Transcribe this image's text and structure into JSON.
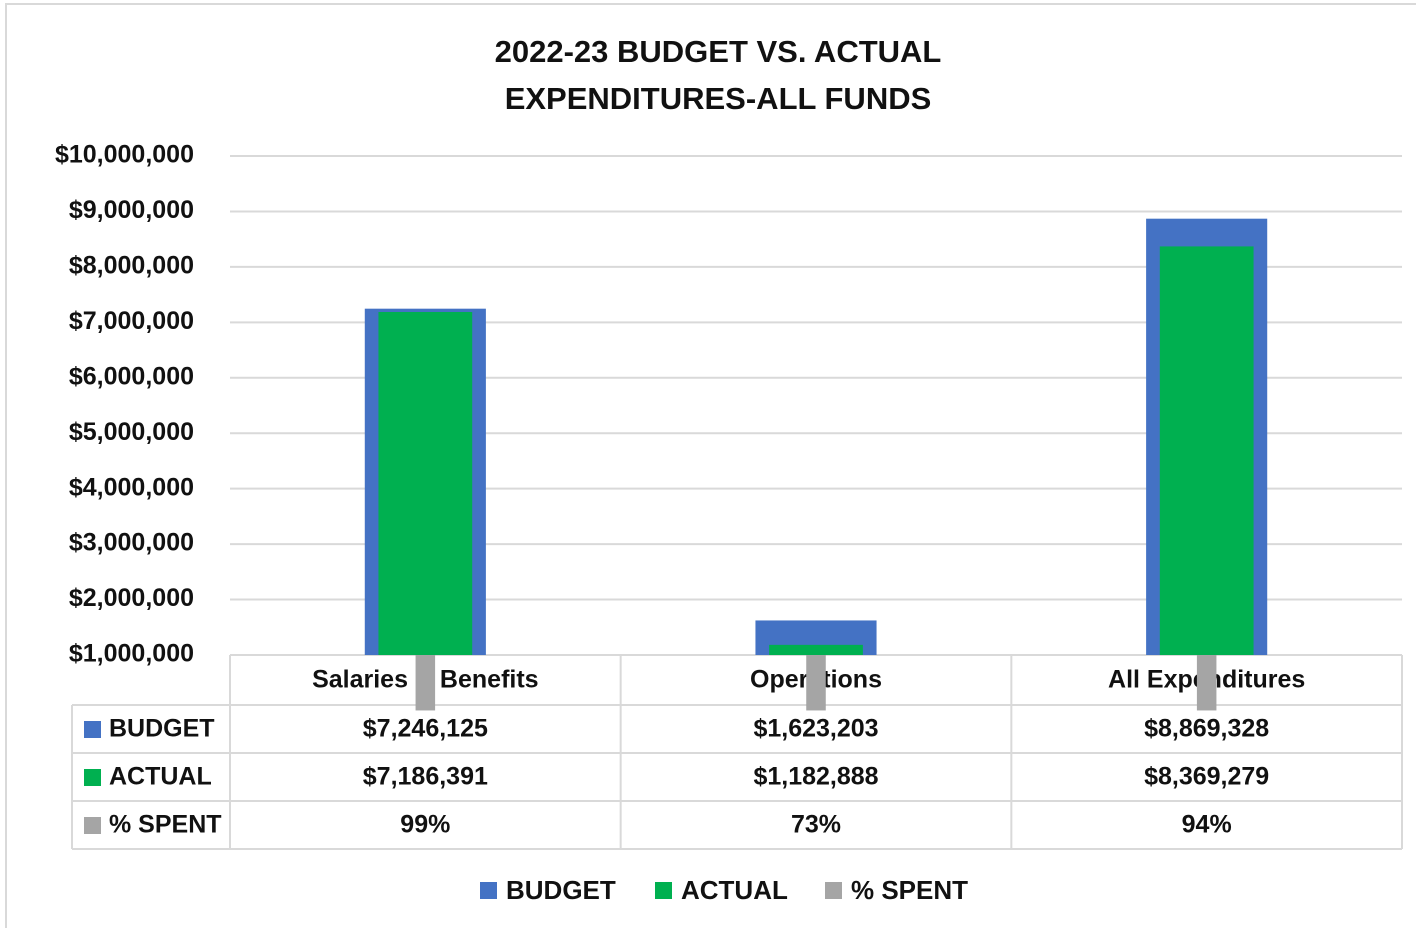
{
  "chart_data": {
    "type": "bar",
    "title": "2022-23 BUDGET VS. ACTUAL EXPENDITURES-ALL FUNDS",
    "categories": [
      "Salaries & Benefits",
      "Operations",
      "All Expenditures"
    ],
    "series": [
      {
        "name": "BUDGET",
        "color": "#4472c4",
        "values": [
          7246125,
          1623203,
          8869328
        ],
        "value_labels": [
          "$7,246,125",
          "$1,623,203",
          "$8,869,328"
        ]
      },
      {
        "name": "ACTUAL",
        "color": "#00b050",
        "values": [
          7186391,
          1182888,
          8369279
        ],
        "value_labels": [
          "$7,186,391",
          "$1,182,888",
          "$8,369,279"
        ]
      },
      {
        "name": "% SPENT",
        "color": "#a5a5a5",
        "values": [
          99,
          73,
          94
        ],
        "value_labels": [
          "99%",
          "73%",
          "94%"
        ]
      }
    ],
    "ylim": [
      1000000,
      10000000
    ],
    "yticks": [
      {
        "value": 1000000,
        "label": "$1,000,000"
      },
      {
        "value": 2000000,
        "label": "$2,000,000"
      },
      {
        "value": 3000000,
        "label": "$3,000,000"
      },
      {
        "value": 4000000,
        "label": "$4,000,000"
      },
      {
        "value": 5000000,
        "label": "$5,000,000"
      },
      {
        "value": 6000000,
        "label": "$6,000,000"
      },
      {
        "value": 7000000,
        "label": "$7,000,000"
      },
      {
        "value": 8000000,
        "label": "$8,000,000"
      },
      {
        "value": 9000000,
        "label": "$9,000,000"
      },
      {
        "value": 10000000,
        "label": "$10,000,000"
      }
    ],
    "grid": true,
    "legend": "bottom"
  }
}
